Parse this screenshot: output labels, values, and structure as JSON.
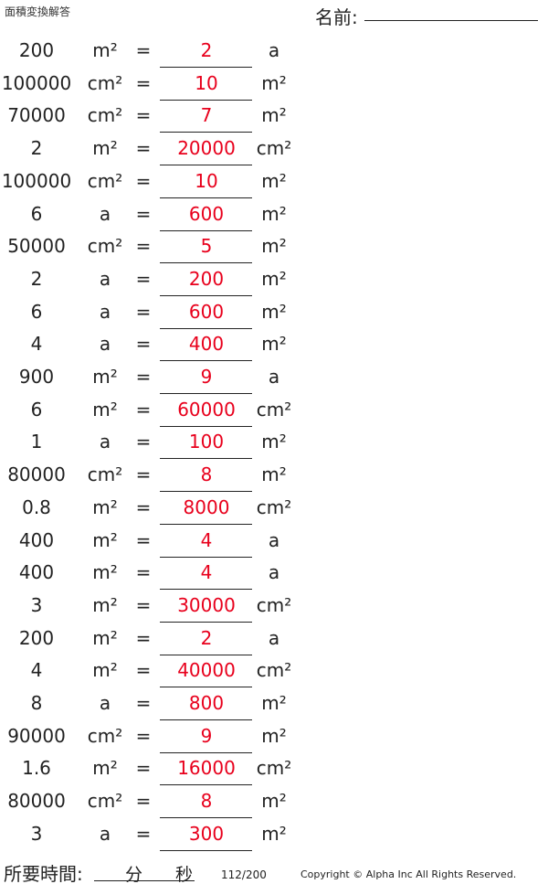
{
  "header": {
    "title": "面積変換解答",
    "name_label": "名前:"
  },
  "problems": [
    {
      "value": "200",
      "from": "m²",
      "answer": "2",
      "to": "a"
    },
    {
      "value": "100000",
      "from": "cm²",
      "answer": "10",
      "to": "m²"
    },
    {
      "value": "70000",
      "from": "cm²",
      "answer": "7",
      "to": "m²"
    },
    {
      "value": "2",
      "from": "m²",
      "answer": "20000",
      "to": "cm²"
    },
    {
      "value": "100000",
      "from": "cm²",
      "answer": "10",
      "to": "m²"
    },
    {
      "value": "6",
      "from": "a",
      "answer": "600",
      "to": "m²"
    },
    {
      "value": "50000",
      "from": "cm²",
      "answer": "5",
      "to": "m²"
    },
    {
      "value": "2",
      "from": "a",
      "answer": "200",
      "to": "m²"
    },
    {
      "value": "6",
      "from": "a",
      "answer": "600",
      "to": "m²"
    },
    {
      "value": "4",
      "from": "a",
      "answer": "400",
      "to": "m²"
    },
    {
      "value": "900",
      "from": "m²",
      "answer": "9",
      "to": "a"
    },
    {
      "value": "6",
      "from": "m²",
      "answer": "60000",
      "to": "cm²"
    },
    {
      "value": "1",
      "from": "a",
      "answer": "100",
      "to": "m²"
    },
    {
      "value": "80000",
      "from": "cm²",
      "answer": "8",
      "to": "m²"
    },
    {
      "value": "0.8",
      "from": "m²",
      "answer": "8000",
      "to": "cm²"
    },
    {
      "value": "400",
      "from": "m²",
      "answer": "4",
      "to": "a"
    },
    {
      "value": "400",
      "from": "m²",
      "answer": "4",
      "to": "a"
    },
    {
      "value": "3",
      "from": "m²",
      "answer": "30000",
      "to": "cm²"
    },
    {
      "value": "200",
      "from": "m²",
      "answer": "2",
      "to": "a"
    },
    {
      "value": "4",
      "from": "m²",
      "answer": "40000",
      "to": "cm²"
    },
    {
      "value": "8",
      "from": "a",
      "answer": "800",
      "to": "m²"
    },
    {
      "value": "90000",
      "from": "cm²",
      "answer": "9",
      "to": "m²"
    },
    {
      "value": "1.6",
      "from": "m²",
      "answer": "16000",
      "to": "cm²"
    },
    {
      "value": "80000",
      "from": "cm²",
      "answer": "8",
      "to": "m²"
    },
    {
      "value": "3",
      "from": "a",
      "answer": "300",
      "to": "m²"
    }
  ],
  "equals": "=",
  "answer_color": "#e8001c",
  "footer": {
    "time_label": "所要時間:",
    "minutes": "分",
    "seconds": "秒",
    "page": "112/200",
    "copyright": "Copyright © Alpha Inc All Rights Reserved."
  }
}
